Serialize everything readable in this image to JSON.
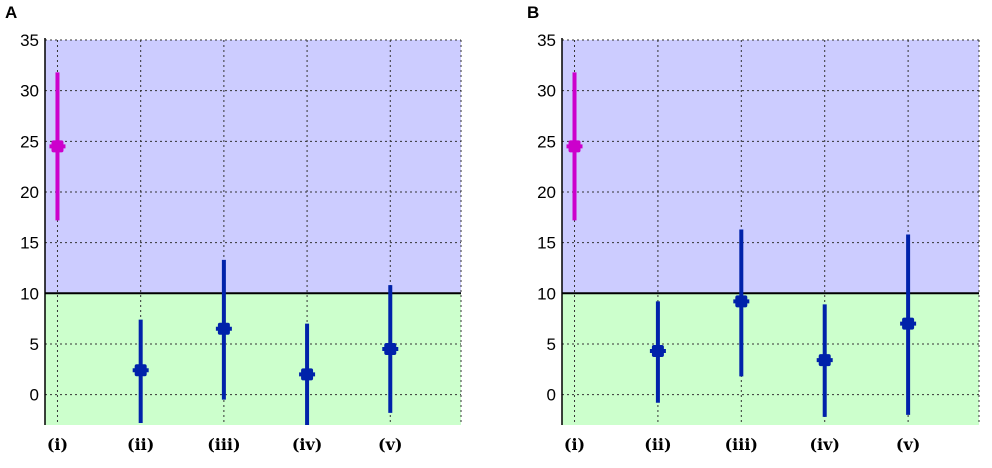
{
  "chart_data": [
    {
      "panel_label": "A",
      "type": "scatter",
      "subtype": "point-with-error-bars",
      "categories": [
        "(i)",
        "(ii)",
        "(iii)",
        "(iv)",
        "(v)"
      ],
      "ylim": [
        -3,
        35
      ],
      "yticks": [
        "35",
        "30",
        "25",
        "20",
        "15",
        "10",
        "5",
        "0"
      ],
      "ytick_values": [
        35,
        30,
        25,
        20,
        15,
        10,
        5,
        0
      ],
      "threshold": 10,
      "grid": true,
      "background": {
        "above_threshold": "#ccccff",
        "below_threshold": "#ccffcc"
      },
      "points": [
        {
          "category": "(i)",
          "value": 24.5,
          "low": 17.2,
          "high": 31.8,
          "color": "#cc00cc"
        },
        {
          "category": "(ii)",
          "value": 2.4,
          "low": -2.8,
          "high": 7.4,
          "color": "#0022aa"
        },
        {
          "category": "(iii)",
          "value": 6.5,
          "low": -0.5,
          "high": 13.3,
          "color": "#0022aa"
        },
        {
          "category": "(iv)",
          "value": 2.0,
          "low": -3.0,
          "high": 7.0,
          "color": "#0022aa"
        },
        {
          "category": "(v)",
          "value": 4.5,
          "low": -1.8,
          "high": 10.8,
          "color": "#0022aa"
        }
      ]
    },
    {
      "panel_label": "B",
      "type": "scatter",
      "subtype": "point-with-error-bars",
      "categories": [
        "(i)",
        "(ii)",
        "(iii)",
        "(iv)",
        "(v)"
      ],
      "ylim": [
        -3,
        35
      ],
      "yticks": [
        "35",
        "30",
        "25",
        "20",
        "15",
        "10",
        "5",
        "0"
      ],
      "ytick_values": [
        35,
        30,
        25,
        20,
        15,
        10,
        5,
        0
      ],
      "threshold": 10,
      "grid": true,
      "background": {
        "above_threshold": "#ccccff",
        "below_threshold": "#ccffcc"
      },
      "points": [
        {
          "category": "(i)",
          "value": 24.5,
          "low": 17.2,
          "high": 31.8,
          "color": "#cc00cc"
        },
        {
          "category": "(ii)",
          "value": 4.3,
          "low": -0.8,
          "high": 9.2,
          "color": "#0022aa"
        },
        {
          "category": "(iii)",
          "value": 9.2,
          "low": 1.8,
          "high": 16.3,
          "color": "#0022aa"
        },
        {
          "category": "(iv)",
          "value": 3.4,
          "low": -2.2,
          "high": 8.9,
          "color": "#0022aa"
        },
        {
          "category": "(v)",
          "value": 7.0,
          "low": -2.0,
          "high": 15.8,
          "color": "#0022aa"
        }
      ]
    }
  ]
}
